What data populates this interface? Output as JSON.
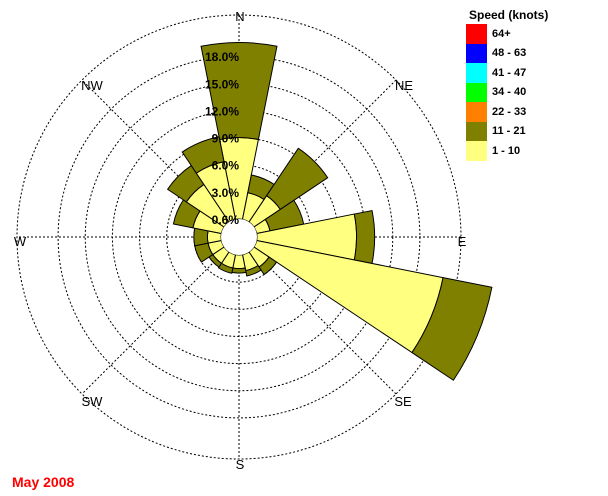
{
  "chart_data": {
    "type": "wind-rose",
    "directions": [
      "N",
      "NNE",
      "NE",
      "ENE",
      "E",
      "ESE",
      "SE",
      "SSE",
      "S",
      "SSW",
      "SW",
      "WSW",
      "W",
      "WNW",
      "NW",
      "NNW"
    ],
    "direction_labels": [
      "N",
      "NE",
      "E",
      "SE",
      "S",
      "SW",
      "W",
      "NW"
    ],
    "rings": [
      3.0,
      6.0,
      9.0,
      12.0,
      15.0,
      18.0
    ],
    "ring_labels": [
      "0.6%",
      "3.0%",
      "6.0%",
      "9.0%",
      "12.0%",
      "15.0%",
      "18.0%"
    ],
    "calm_percent": 0.6,
    "bin_colors": [
      "#ffff80",
      "#808000"
    ],
    "series": [
      {
        "values": [
          9.0,
          3.0,
          3.5,
          1.5,
          11.0,
          21.0,
          2.0,
          1.8,
          1.5,
          1.5,
          1.5,
          1.5,
          1.5,
          3.2,
          5.0,
          6.5
        ]
      },
      {
        "values": [
          10.5,
          2.0,
          6.3,
          3.8,
          2.0,
          5.5,
          1.0,
          0.6,
          0.5,
          0.6,
          0.5,
          1.5,
          1.5,
          2.2,
          2.5,
          2.8
        ]
      }
    ]
  },
  "legend": {
    "title": "Speed (knots)",
    "items": [
      {
        "label": "64+",
        "color": "#ff0000"
      },
      {
        "label": "48 - 63",
        "color": "#0000ff"
      },
      {
        "label": "41 - 47",
        "color": "#00ffff"
      },
      {
        "label": "34 - 40",
        "color": "#00ff00"
      },
      {
        "label": "22 - 33",
        "color": "#ff8000"
      },
      {
        "label": "11 - 21",
        "color": "#808000"
      },
      {
        "label": "1 - 10",
        "color": "#ffff80"
      }
    ]
  },
  "caption": "May 2008"
}
